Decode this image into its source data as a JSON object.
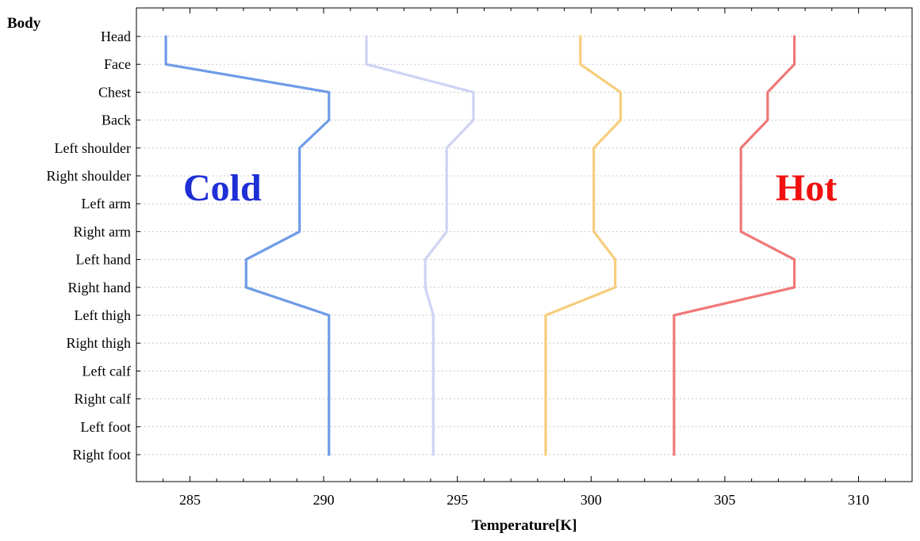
{
  "chart_data": {
    "type": "line",
    "orientation": "horizontal",
    "ylabel": "Body",
    "xlabel": "Temperature[K]",
    "categories": [
      "Head",
      "Face",
      "Chest",
      "Back",
      "Left shoulder",
      "Right shoulder",
      "Left arm",
      "Right arm",
      "Left hand",
      "Right hand",
      "Left thigh",
      "Right thigh",
      "Left calf",
      "Right calf",
      "Left foot",
      "Right foot"
    ],
    "xlim": [
      283,
      312
    ],
    "xticks": [
      285,
      290,
      295,
      300,
      305,
      310
    ],
    "grid": "horizontal dotted",
    "series": [
      {
        "color": "#6f9be8",
        "values": [
          284.1,
          284.1,
          290.2,
          290.2,
          289.1,
          289.1,
          289.1,
          289.1,
          287.1,
          287.1,
          290.2,
          290.2,
          290.2,
          290.2,
          290.2,
          290.2
        ]
      },
      {
        "color": "#cfd3f3",
        "values": [
          291.6,
          291.6,
          295.6,
          295.6,
          294.6,
          294.6,
          294.6,
          294.6,
          293.8,
          293.8,
          294.1,
          294.1,
          294.1,
          294.1,
          294.1,
          294.1
        ]
      },
      {
        "color": "#f7cd7c",
        "values": [
          299.6,
          299.6,
          301.1,
          301.1,
          300.1,
          300.1,
          300.1,
          300.1,
          300.9,
          300.9,
          298.3,
          298.3,
          298.3,
          298.3,
          298.3,
          298.3
        ]
      },
      {
        "color": "#f07878",
        "values": [
          307.6,
          307.6,
          306.6,
          306.6,
          305.6,
          305.6,
          305.6,
          305.6,
          307.6,
          307.6,
          303.1,
          303.1,
          303.1,
          303.1,
          303.1,
          303.1
        ]
      }
    ],
    "annotations": [
      {
        "text": "Cold",
        "color": "#1f2fd6"
      },
      {
        "text": "Hot",
        "color": "#f01010"
      }
    ]
  }
}
